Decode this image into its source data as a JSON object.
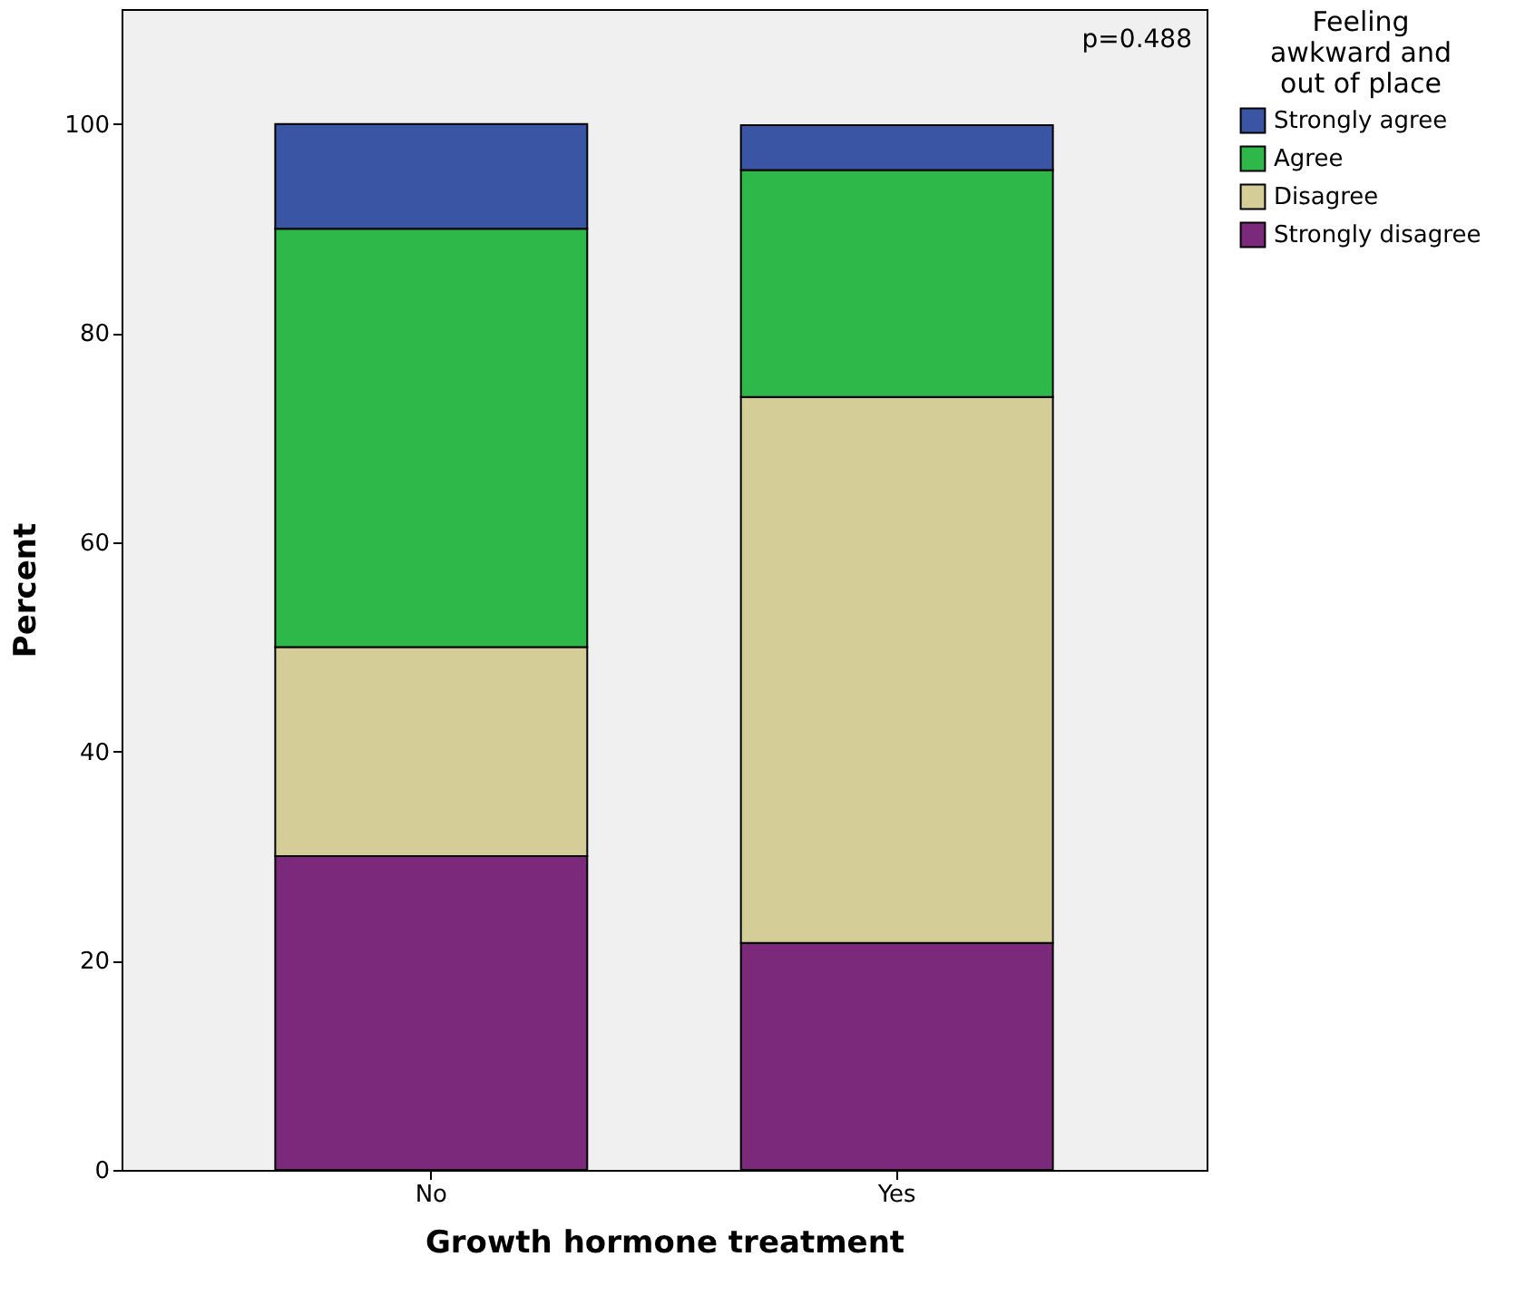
{
  "chart_data": {
    "type": "bar",
    "stacked": true,
    "xlabel": "Growth hormone treatment",
    "ylabel": "Percent",
    "legend_title": "Feeling awkward and out of place",
    "categories": [
      "No",
      "Yes"
    ],
    "series": [
      {
        "name": "Strongly disagree",
        "color": "#7b2a7b",
        "values": [
          30,
          21.7
        ]
      },
      {
        "name": "Disagree",
        "color": "#d4cd98",
        "values": [
          20,
          52.2
        ]
      },
      {
        "name": "Agree",
        "color": "#2eb84a",
        "values": [
          40,
          21.7
        ]
      },
      {
        "name": "Strongly agree",
        "color": "#3a55a4",
        "values": [
          10,
          4.3
        ]
      }
    ],
    "ylim": [
      0,
      111
    ],
    "yticks": [
      0,
      20,
      40,
      60,
      80,
      100
    ],
    "grid": false,
    "legend": "right",
    "annotations": [
      "p=0.488"
    ]
  }
}
